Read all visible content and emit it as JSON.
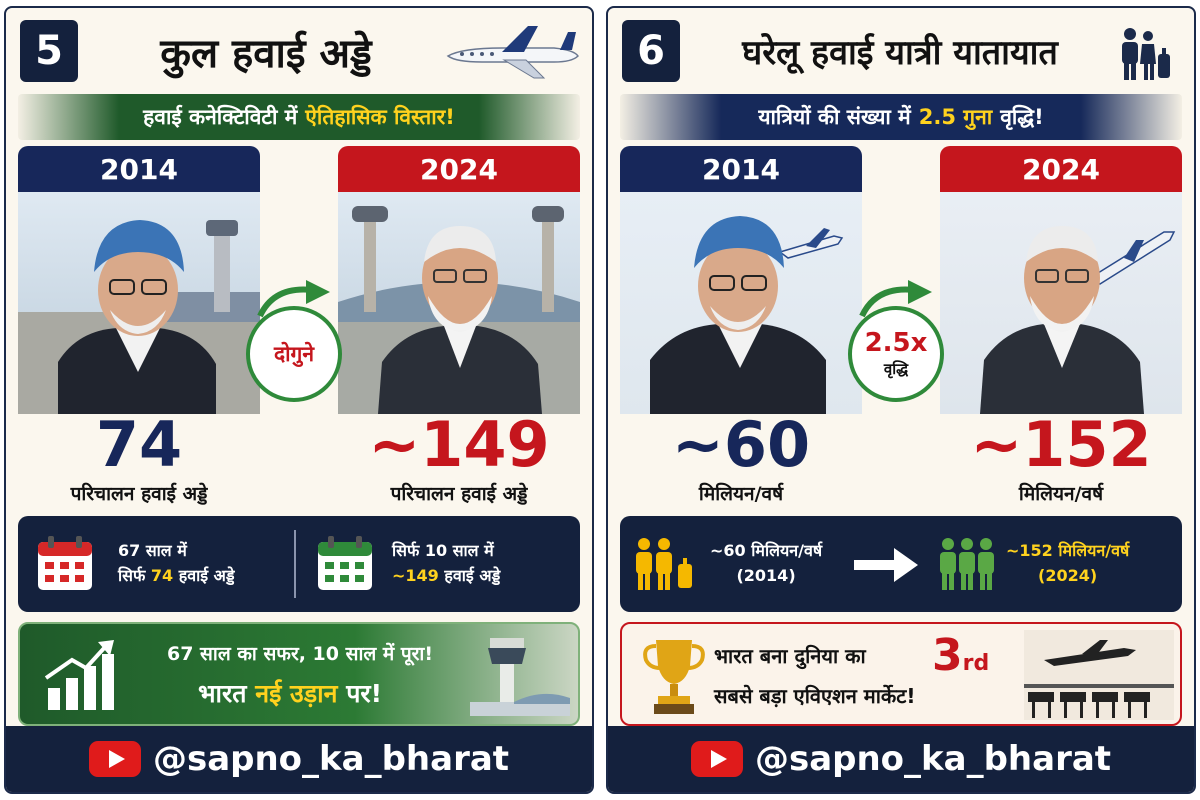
{
  "channel": "@sapno_ka_bharat",
  "colors": {
    "navy": "#14213d",
    "red": "#c5161d",
    "green": "#2f8a3a",
    "yellow": "#ffd21e"
  },
  "cards": [
    {
      "number": "5",
      "title": "कुल हवाई अड्डे",
      "ribbon_text": "हवाई कनेक्टिविटी में",
      "ribbon_highlight": "ऐतिहासिक विस्तार!",
      "year_a": "2014",
      "value_a": "74",
      "caption_a": "परिचालन हवाई अड्डे",
      "year_b": "2024",
      "value_b": "~149",
      "caption_b": "परिचालन हवाई अड्डे",
      "badge": "दोगुने",
      "info_a_line1": "67 साल में",
      "info_a_line2_pre": "सिर्फ",
      "info_a_line2_num": "74",
      "info_a_line2_post": "हवाई अड्डे",
      "info_b_line1": "सिर्फ 10 साल में",
      "info_b_line2_num": "~149",
      "info_b_line2_post": "हवाई अड्डे",
      "promo_line1": "67 साल का सफर, 10 साल में पूरा!",
      "promo_line2_pre": "भारत",
      "promo_line2_hl": "नई उड़ान",
      "promo_line2_post": "पर!"
    },
    {
      "number": "6",
      "title": "घरेलू हवाई यात्री यातायात",
      "ribbon_text": "यात्रियों की संख्या में",
      "ribbon_highlight": "2.5 गुना",
      "ribbon_tail": "वृद्धि!",
      "year_a": "2014",
      "value_a": "~60",
      "caption_a": "मिलियन/वर्ष",
      "year_b": "2024",
      "value_b": "~152",
      "caption_b": "मिलियन/वर्ष",
      "badge": "2.5x",
      "badge_small": "वृद्धि",
      "info_a_value": "~60 मिलियन/वर्ष",
      "info_a_year": "(2014)",
      "info_b_value": "~152 मिलियन/वर्ष",
      "info_b_year": "(2024)",
      "promo_line1": "भारत बना दुनिया का",
      "promo_rank": "3",
      "promo_rank_suffix": "rd",
      "promo_line2": "सबसे बड़ा एविएशन मार्केट!"
    }
  ]
}
